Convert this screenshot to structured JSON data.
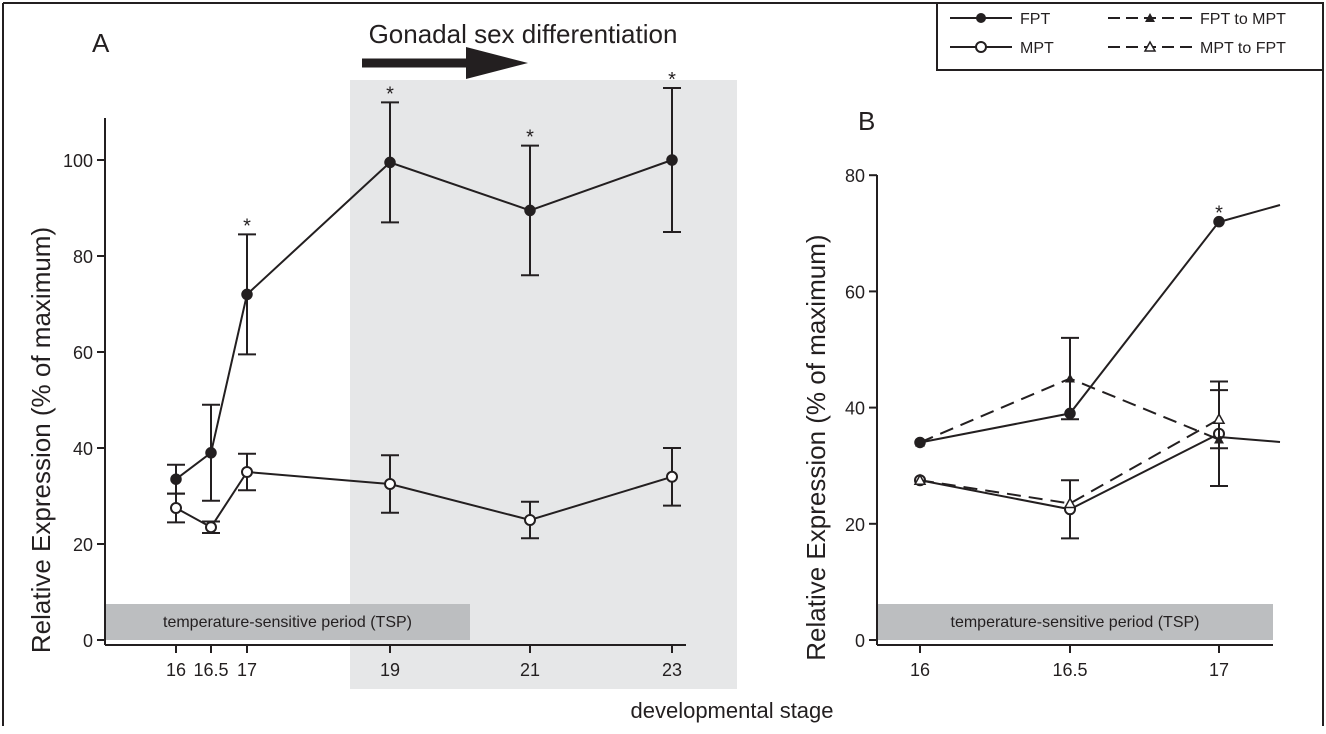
{
  "figure_title": "Gonadal sex differentiation",
  "shared_xlabel": "developmental stage",
  "legend": {
    "placement": "top-right",
    "entries": [
      {
        "label": "FPT",
        "marker": "filled-circle",
        "line": "solid"
      },
      {
        "label": "MPT",
        "marker": "open-circle",
        "line": "solid"
      },
      {
        "label": "FPT to MPT",
        "marker": "filled-triangle",
        "line": "dashed"
      },
      {
        "label": "MPT to FPT",
        "marker": "open-triangle",
        "line": "dashed"
      }
    ]
  },
  "colors": {
    "ink": "#231f20",
    "shade_light": "#e6e7e8",
    "shade_dark": "#bcbec0"
  },
  "chart_data": [
    {
      "panel": "A",
      "type": "line",
      "ylabel": "Relative Expression (% of maximum)",
      "xlabel": "developmental stage",
      "ylim": [
        0,
        110
      ],
      "yticks": [
        0,
        20,
        40,
        60,
        80,
        100
      ],
      "xticks": [
        16,
        16.5,
        17,
        19,
        21,
        23
      ],
      "xtick_labels": [
        "16",
        "16.5",
        "17",
        "19",
        "21",
        "23"
      ],
      "tsp_band_label": "temperature-sensitive period (TSP)",
      "shaded_region_label": "Gonadal sex differentiation",
      "series": [
        {
          "name": "FPT",
          "marker": "filled-circle",
          "line": "solid",
          "x": [
            16,
            16.5,
            17,
            19,
            21,
            23
          ],
          "y": [
            33.5,
            39,
            72,
            99.5,
            89.5,
            100
          ],
          "err": [
            3,
            10,
            12.5,
            12.5,
            13.5,
            15
          ],
          "significant": [
            false,
            false,
            true,
            true,
            true,
            true
          ]
        },
        {
          "name": "MPT",
          "marker": "open-circle",
          "line": "solid",
          "x": [
            16,
            16.5,
            17,
            19,
            21,
            23
          ],
          "y": [
            27.5,
            23.5,
            35,
            32.5,
            25,
            34
          ],
          "err": [
            3,
            1.2,
            3.8,
            6,
            3.8,
            6
          ],
          "significant": [
            false,
            false,
            false,
            false,
            false,
            false
          ]
        }
      ],
      "significance_marker": "*"
    },
    {
      "panel": "B",
      "type": "line",
      "ylabel": "Relative Expression (% of maximum)",
      "ylim": [
        0,
        80
      ],
      "yticks": [
        0,
        20,
        40,
        60,
        80
      ],
      "xticks": [
        16,
        16.5,
        17
      ],
      "xtick_labels": [
        "16",
        "16.5",
        "17"
      ],
      "tsp_band_label": "temperature-sensitive period (TSP)",
      "series": [
        {
          "name": "FPT",
          "marker": "filled-circle",
          "line": "solid",
          "x": [
            16,
            16.5,
            17
          ],
          "y": [
            34,
            39,
            72
          ],
          "err": [
            0,
            0,
            0
          ],
          "significant": [
            false,
            false,
            true
          ]
        },
        {
          "name": "MPT",
          "marker": "open-circle",
          "line": "solid",
          "x": [
            16,
            16.5,
            17
          ],
          "y": [
            27.5,
            22.5,
            35.5
          ],
          "err": [
            0,
            5,
            9
          ],
          "significant": [
            false,
            false,
            false
          ]
        },
        {
          "name": "FPT to MPT",
          "marker": "filled-triangle",
          "line": "dashed",
          "x": [
            16,
            16.5,
            17
          ],
          "y": [
            34,
            45,
            34.5
          ],
          "err": [
            0,
            7,
            0
          ],
          "significant": [
            false,
            false,
            false
          ]
        },
        {
          "name": "MPT to FPT",
          "marker": "open-triangle",
          "line": "dashed",
          "x": [
            16,
            16.5,
            17
          ],
          "y": [
            27.5,
            23.5,
            38
          ],
          "err": [
            0,
            0,
            5
          ],
          "significant": [
            false,
            false,
            false
          ]
        }
      ],
      "significance_marker": "*"
    }
  ]
}
